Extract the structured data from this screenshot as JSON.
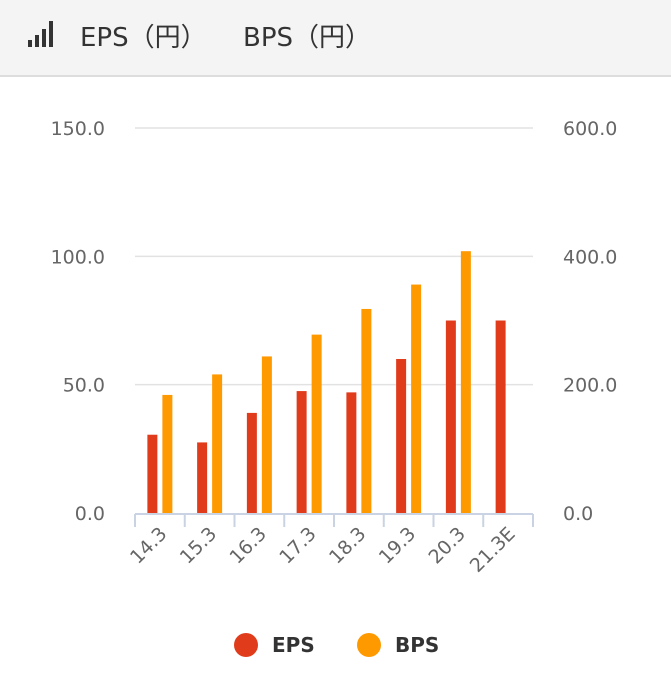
{
  "header": {
    "eps_title": "EPS（円）",
    "bps_title": "BPS（円）"
  },
  "chart_data": {
    "type": "bar",
    "title": "",
    "xlabel": "",
    "ylabel": "",
    "categories": [
      "14.3",
      "15.3",
      "16.3",
      "17.3",
      "18.3",
      "19.3",
      "20.3",
      "21.3E"
    ],
    "series": [
      {
        "name": "EPS",
        "axis": "left",
        "color": "#e03c1c",
        "values": [
          30.5,
          27.5,
          39.0,
          47.5,
          47.0,
          60.0,
          75.0,
          75.0
        ]
      },
      {
        "name": "BPS",
        "axis": "right",
        "color": "#ff9900",
        "values": [
          184,
          216,
          244,
          278,
          318,
          356,
          408,
          null
        ]
      }
    ],
    "left_axis": {
      "ylim": [
        0,
        150
      ],
      "ticks": [
        "0.0",
        "50.0",
        "100.0",
        "150.0"
      ]
    },
    "right_axis": {
      "ylim": [
        0,
        600
      ],
      "ticks": [
        "0.0",
        "200.0",
        "400.0",
        "600.0"
      ]
    },
    "grid": true,
    "legend_position": "bottom-center"
  },
  "legend": [
    {
      "label": "EPS",
      "color": "#e03c1c"
    },
    {
      "label": "BPS",
      "color": "#ff9900"
    }
  ],
  "icons": {
    "header_icon": "signal-bars-icon"
  }
}
